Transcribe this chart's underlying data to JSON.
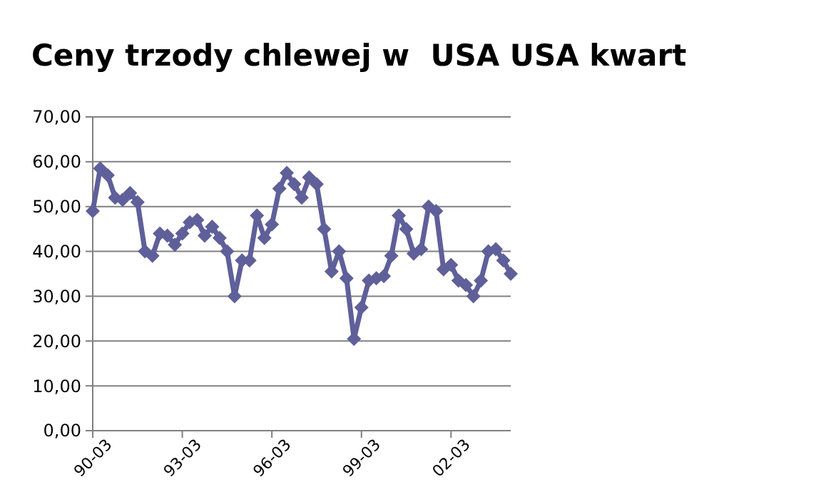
{
  "chart_data": {
    "type": "line",
    "title": "Ceny trzody chlewej w  USA USA kwart",
    "categories": [
      "90-03",
      null,
      null,
      null,
      null,
      null,
      null,
      null,
      null,
      null,
      null,
      null,
      "93-03",
      null,
      null,
      null,
      null,
      null,
      null,
      null,
      null,
      null,
      null,
      null,
      "96-03",
      null,
      null,
      null,
      null,
      null,
      null,
      null,
      null,
      null,
      null,
      null,
      "99-03",
      null,
      null,
      null,
      null,
      null,
      null,
      null,
      null,
      null,
      null,
      null,
      "02-03",
      null,
      null,
      null,
      null,
      null,
      null,
      null,
      null
    ],
    "series": [
      {
        "color": "#5f5f9a",
        "values": [
          49,
          58.5,
          57,
          52,
          51.5,
          53,
          51,
          40,
          39,
          44,
          43.5,
          41.5,
          44,
          46.5,
          47,
          43.5,
          45.5,
          43,
          40,
          30,
          38,
          38,
          48,
          43,
          46,
          54,
          57.5,
          55,
          52,
          56.5,
          55,
          45,
          35.5,
          40,
          34,
          20.5,
          27.5,
          33.5,
          34,
          34.5,
          39,
          48,
          45,
          39.5,
          40.5,
          50,
          49,
          36,
          37,
          33.5,
          32.5,
          30,
          33.5,
          40,
          40.5,
          38,
          35
        ]
      }
    ],
    "ylim": [
      0,
      70
    ],
    "yticks": [
      {
        "value": 0,
        "label": "0,00"
      },
      {
        "value": 10,
        "label": "10,00"
      },
      {
        "value": 20,
        "label": "20,00"
      },
      {
        "value": 30,
        "label": "30,00"
      },
      {
        "value": 40,
        "label": "40,00"
      },
      {
        "value": 50,
        "label": "50,00"
      },
      {
        "value": 60,
        "label": "60,00"
      },
      {
        "value": 70,
        "label": "70,00"
      }
    ],
    "grid": "y",
    "marker": "diamond",
    "line_style": "solid"
  }
}
